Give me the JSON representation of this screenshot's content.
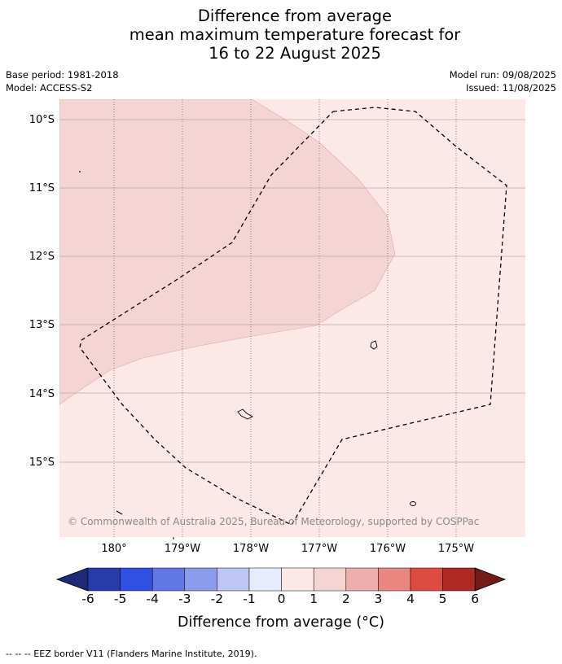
{
  "title": {
    "line1": "Difference from average",
    "line2": "mean maximum temperature forecast for",
    "line3": "16 to 22 August 2025"
  },
  "meta": {
    "base_period": "Base period: 1981-2018",
    "model": "Model: ACCESS-S2",
    "model_run": "Model run: 09/08/2025",
    "issued": "Issued: 11/08/2025"
  },
  "map": {
    "latitude_labels": [
      "10°S",
      "11°S",
      "12°S",
      "13°S",
      "14°S",
      "15°S"
    ],
    "longitude_labels": [
      "180°",
      "179°W",
      "178°W",
      "177°W",
      "176°W",
      "175°W"
    ],
    "fill_regions": [
      {
        "category": "0 to 1",
        "color": "#fbe8e7"
      },
      {
        "category": "1 to 2",
        "color": "#f5d5d3"
      }
    ],
    "copyright": "© Commonwealth of Australia 2025, Bureau of Meteorology, supported by COSPPac"
  },
  "colorbar": {
    "title": "Difference from average (°C)",
    "tick_labels": [
      "-6",
      "-5",
      "-4",
      "-3",
      "-2",
      "-1",
      "0",
      "1",
      "2",
      "3",
      "4",
      "5",
      "6"
    ],
    "under_color": "#1c2a78",
    "over_color": "#741a17",
    "colors": [
      "#273ca8",
      "#2f50e1",
      "#5f78e6",
      "#8b9ced",
      "#bec6f5",
      "#e8ebfc",
      "#fbe8e7",
      "#f5d5d3",
      "#eeaeab",
      "#e98680",
      "#dd4a3f",
      "#ad2922"
    ]
  },
  "footnote": "--  --  -- EEZ border V11 (Flanders Marine Institute, 2019)."
}
